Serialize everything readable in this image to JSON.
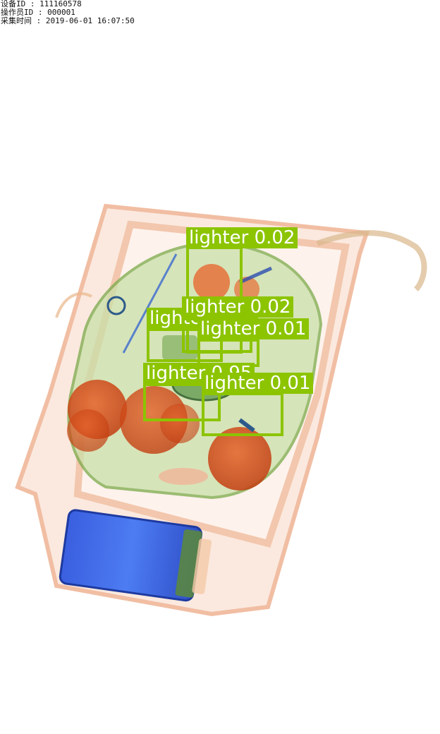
{
  "header": {
    "device_id": "设备ID : 111160578",
    "operator_id": "操作员ID : 000001",
    "capture_time": "采集时间 : 2019-06-01 16:07:50"
  },
  "detection_color": "#8cc400",
  "detections": [
    {
      "label": "lighter 0.02"
    },
    {
      "label": "lighter 0.02"
    },
    {
      "label": "lighter 0.02"
    },
    {
      "label": "lighter 0.01"
    },
    {
      "label": "lighter 0.95"
    },
    {
      "label": "lighter 0.01"
    }
  ]
}
